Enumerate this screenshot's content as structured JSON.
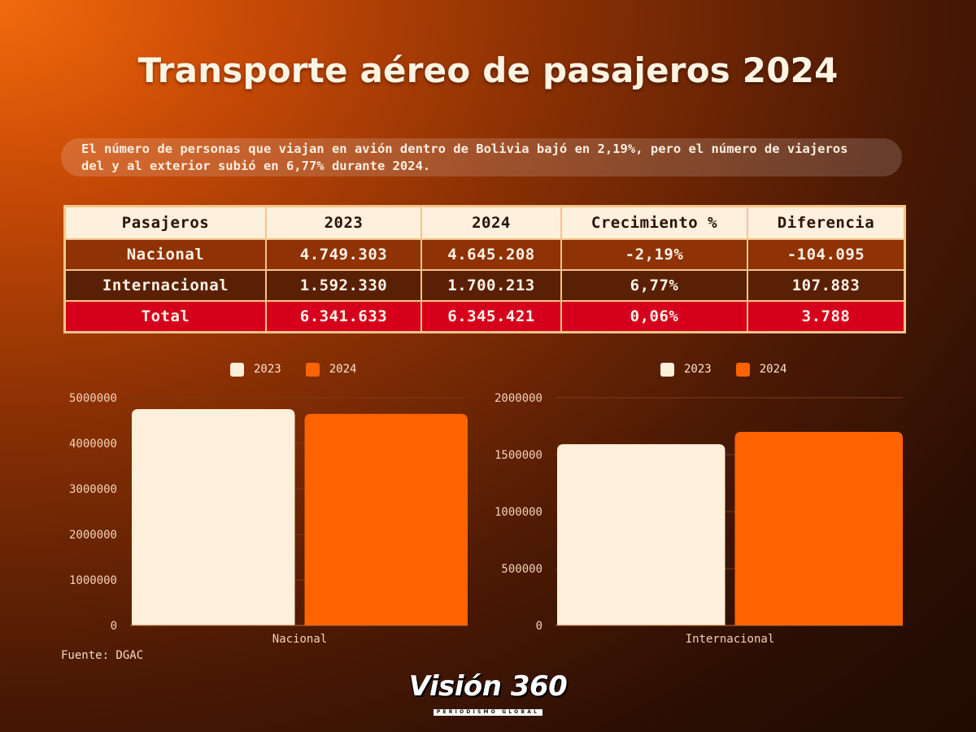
{
  "title": "Transporte aéreo de pasajeros 2024",
  "summary": "El número de personas que viajan en avión dentro de Bolivia bajó en 2,19%, pero el número de viajeros del y al exterior subió en 6,77% durante 2024.",
  "table": {
    "headers": [
      "Pasajeros",
      "2023",
      "2024",
      "Crecimiento %",
      "Diferencia"
    ],
    "rows": [
      [
        "Nacional",
        "4.749.303",
        "4.645.208",
        "-2,19%",
        "-104.095"
      ],
      [
        "Internacional",
        "1.592.330",
        "1.700.213",
        "6,77%",
        "107.883"
      ],
      [
        "Total",
        "6.341.633",
        "6.345.421",
        "0,06%",
        "3.788"
      ]
    ]
  },
  "colors": {
    "series_2023": "#fdefd9",
    "series_2024": "#ff6300",
    "total_row": "#d6001c",
    "grid": "#7a3a16",
    "axis_text": "#f3d3b8"
  },
  "chart_data": [
    {
      "type": "bar",
      "categories": [
        "Nacional"
      ],
      "series": [
        {
          "name": "2023",
          "values": [
            4749303
          ]
        },
        {
          "name": "2024",
          "values": [
            4645208
          ]
        }
      ],
      "ylim": [
        0,
        5000000
      ],
      "yticks": [
        0,
        1000000,
        2000000,
        3000000,
        4000000,
        5000000
      ],
      "ytick_labels": [
        "0",
        "1000000",
        "2000000",
        "3000000",
        "4000000",
        "5000000"
      ],
      "legend": "top-center",
      "grid": true
    },
    {
      "type": "bar",
      "categories": [
        "Internacional"
      ],
      "series": [
        {
          "name": "2023",
          "values": [
            1592330
          ]
        },
        {
          "name": "2024",
          "values": [
            1700213
          ]
        }
      ],
      "ylim": [
        0,
        2000000
      ],
      "yticks": [
        0,
        500000,
        1000000,
        1500000,
        2000000
      ],
      "ytick_labels": [
        "0",
        "500000",
        "1000000",
        "1500000",
        "2000000"
      ],
      "legend": "top-center",
      "grid": true
    }
  ],
  "source": "Fuente: DGAC",
  "logo": {
    "main": "Visión 360",
    "sub": "PERIODISMO GLOBAL"
  }
}
